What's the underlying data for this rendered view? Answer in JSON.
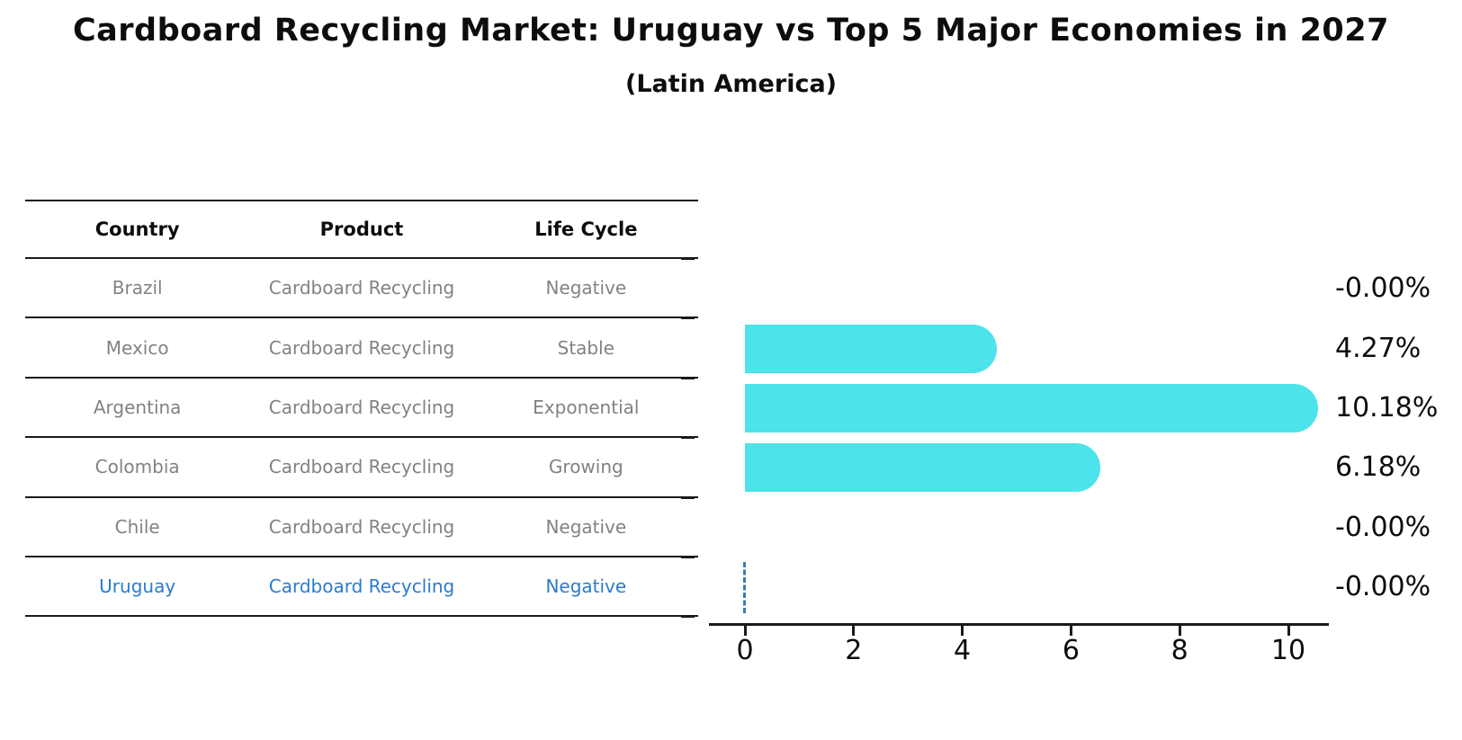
{
  "title": "Cardboard Recycling Market: Uruguay vs Top 5 Major Economies in 2027",
  "subtitle": "(Latin America)",
  "table": {
    "headers": [
      "Country",
      "Product",
      "Life Cycle"
    ],
    "rows": [
      {
        "country": "Brazil",
        "product": "Cardboard Recycling",
        "life_cycle": "Negative",
        "highlight": false
      },
      {
        "country": "Mexico",
        "product": "Cardboard Recycling",
        "life_cycle": "Stable",
        "highlight": false
      },
      {
        "country": "Argentina",
        "product": "Cardboard Recycling",
        "life_cycle": "Exponential",
        "highlight": false
      },
      {
        "country": "Colombia",
        "product": "Cardboard Recycling",
        "life_cycle": "Growing",
        "highlight": false
      },
      {
        "country": "Chile",
        "product": "Cardboard Recycling",
        "life_cycle": "Negative",
        "highlight": false
      },
      {
        "country": "Uruguay",
        "product": "Cardboard Recycling",
        "life_cycle": "Negative",
        "highlight": true
      }
    ]
  },
  "chart_data": {
    "type": "bar",
    "orientation": "horizontal",
    "title": "Cardboard Recycling Market: Uruguay vs Top 5 Major Economies in 2027",
    "subtitle": "(Latin America)",
    "categories": [
      "Brazil",
      "Mexico",
      "Argentina",
      "Colombia",
      "Chile",
      "Uruguay"
    ],
    "values": [
      -0.0,
      4.27,
      10.18,
      6.18,
      -0.0,
      -0.0
    ],
    "value_labels": [
      "-0.00%",
      "4.27%",
      "10.18%",
      "6.18%",
      "-0.00%",
      "-0.00%"
    ],
    "xticks": [
      0,
      2,
      4,
      6,
      8,
      10
    ],
    "xlim": [
      -0.66,
      10.74
    ],
    "grid": false,
    "legend": "none",
    "highlight_category": "Uruguay",
    "highlight_marker": "dashed line at 0 on Uruguay row"
  },
  "colors": {
    "bar": "#4de3ea",
    "highlight_text": "#2b7bce",
    "marker_line": "#3e79b4",
    "table_text": "#828282",
    "text": "#0d0d0d"
  }
}
